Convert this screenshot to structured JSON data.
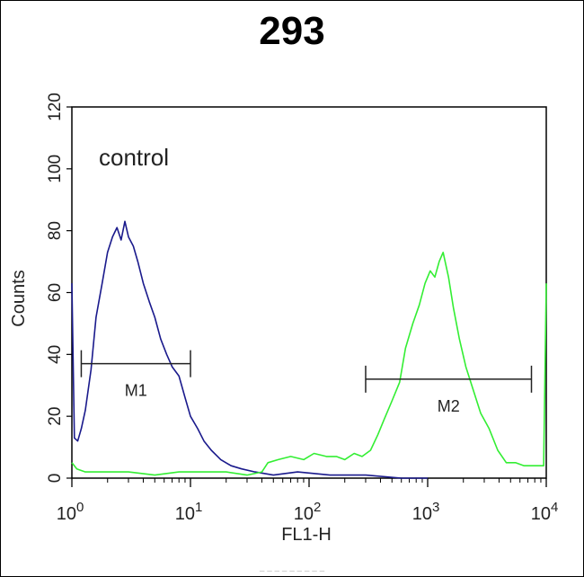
{
  "chart_data": {
    "type": "line",
    "title": "293",
    "xlabel": "FL1-H",
    "ylabel": "Counts",
    "x_scale": "log",
    "xlim": [
      1,
      10000
    ],
    "ylim": [
      0,
      120
    ],
    "x_ticks": [
      {
        "value": 1,
        "base": "10",
        "exp": "0"
      },
      {
        "value": 10,
        "base": "10",
        "exp": "1"
      },
      {
        "value": 100,
        "base": "10",
        "exp": "2"
      },
      {
        "value": 1000,
        "base": "10",
        "exp": "3"
      },
      {
        "value": 10000,
        "base": "10",
        "exp": "4"
      }
    ],
    "y_ticks": [
      0,
      20,
      40,
      60,
      80,
      100,
      120
    ],
    "annotations": [
      {
        "text": "control"
      }
    ],
    "markers": [
      {
        "label": "M1",
        "x_start": 1.2,
        "x_end": 10,
        "y": 37
      },
      {
        "label": "M2",
        "x_start": 300,
        "x_end": 7500,
        "y": 32
      }
    ],
    "series": [
      {
        "color": "#1a1a8c",
        "x": [
          1,
          1.05,
          1.12,
          1.2,
          1.3,
          1.45,
          1.6,
          1.8,
          2.0,
          2.2,
          2.4,
          2.6,
          2.8,
          3.0,
          3.3,
          3.6,
          4.0,
          4.5,
          5.0,
          5.6,
          6.3,
          7.0,
          8.0,
          9.0,
          10,
          11.5,
          13,
          15,
          18,
          22,
          27,
          35,
          50,
          80,
          150,
          300,
          600,
          1000
        ],
        "y": [
          63,
          13,
          12,
          16,
          22,
          35,
          52,
          63,
          73,
          78,
          81,
          77,
          83,
          78,
          75,
          70,
          63,
          57,
          52,
          45,
          40,
          36,
          33,
          26,
          20,
          16,
          12,
          9,
          6,
          4,
          3,
          2,
          1,
          2,
          1,
          1,
          0,
          0
        ]
      },
      {
        "color": "#33ee33",
        "x": [
          1,
          1.1,
          1.3,
          1.6,
          2,
          3,
          5,
          8,
          12,
          20,
          30,
          40,
          45,
          55,
          70,
          90,
          110,
          140,
          170,
          200,
          240,
          280,
          330,
          380,
          430,
          500,
          580,
          650,
          750,
          850,
          950,
          1050,
          1150,
          1250,
          1350,
          1500,
          1650,
          1850,
          2100,
          2400,
          2800,
          3300,
          3900,
          4600,
          5500,
          6500,
          7500,
          8500,
          9500,
          10000
        ],
        "y": [
          5,
          3,
          2,
          2,
          2,
          2,
          1,
          2,
          2,
          2,
          1,
          2,
          5,
          6,
          7,
          6,
          8,
          7,
          7,
          6,
          8,
          7,
          9,
          14,
          19,
          25,
          31,
          42,
          50,
          56,
          63,
          67,
          65,
          70,
          73,
          65,
          55,
          45,
          36,
          29,
          21,
          16,
          9,
          5,
          5,
          4,
          4,
          4,
          4,
          63
        ]
      }
    ]
  },
  "footer_text": "– – – – – – – – –"
}
